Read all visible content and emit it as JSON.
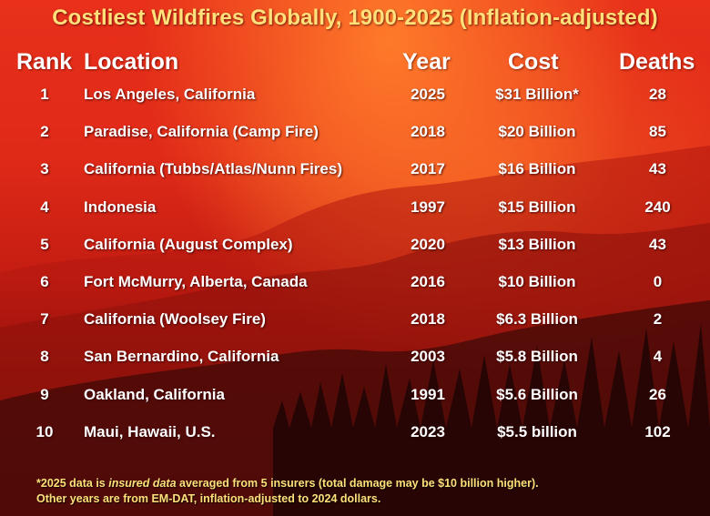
{
  "chart_data": {
    "type": "table",
    "title": "Costliest Wildfires Globally, 1900-2025 (Inflation-adjusted)",
    "columns": [
      "Rank",
      "Location",
      "Year",
      "Cost",
      "Deaths"
    ],
    "rows": [
      {
        "rank": "1",
        "location": "Los Angeles, California",
        "year": "2025",
        "cost": "$31 Billion*",
        "deaths": "28"
      },
      {
        "rank": "2",
        "location": "Paradise, California (Camp Fire)",
        "year": "2018",
        "cost": "$20 Billion",
        "deaths": "85"
      },
      {
        "rank": "3",
        "location": "California (Tubbs/Atlas/Nunn Fires)",
        "year": "2017",
        "cost": "$16 Billion",
        "deaths": "43"
      },
      {
        "rank": "4",
        "location": "Indonesia",
        "year": "1997",
        "cost": "$15 Billion",
        "deaths": "240"
      },
      {
        "rank": "5",
        "location": "California (August Complex)",
        "year": "2020",
        "cost": "$13 Billion",
        "deaths": "43"
      },
      {
        "rank": "6",
        "location": "Fort McMurry, Alberta, Canada",
        "year": "2016",
        "cost": "$10 Billion",
        "deaths": "0"
      },
      {
        "rank": "7",
        "location": "California (Woolsey Fire)",
        "year": "2018",
        "cost": "$6.3 Billion",
        "deaths": "2"
      },
      {
        "rank": "8",
        "location": "San Bernardino, California",
        "year": "2003",
        "cost": "$5.8 Billion",
        "deaths": "4"
      },
      {
        "rank": "9",
        "location": "Oakland, California",
        "year": "1991",
        "cost": "$5.6 Billion",
        "deaths": "26"
      },
      {
        "rank": "10",
        "location": "Maui, Hawaii, U.S.",
        "year": "2023",
        "cost": "$5.5 billion",
        "deaths": "102"
      }
    ],
    "footnote": {
      "line1_prefix": "*2025 data is ",
      "line1_emphasis": "insured data",
      "line1_suffix": " averaged from 5 insurers (total damage may be $10 billion higher).",
      "line2": "Other years are from EM-DAT, inflation-adjusted to 2024 dollars."
    }
  },
  "colors": {
    "title": "#ffe07a",
    "text": "#ffffff",
    "footnote": "#ffe07a",
    "background_top": "#e8301a",
    "background_bottom": "#1e0504"
  }
}
